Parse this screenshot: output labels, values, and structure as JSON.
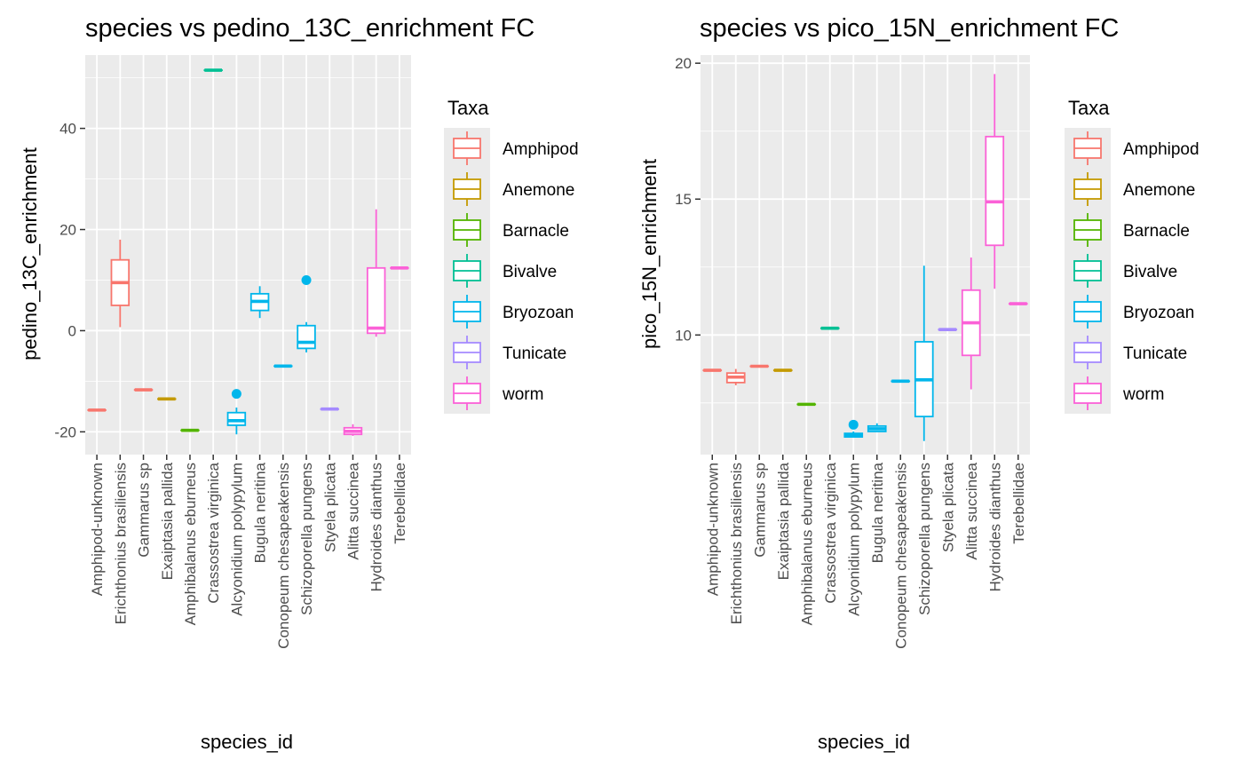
{
  "chart_data": [
    {
      "type": "boxplot",
      "title": "species vs pedino_13C_enrichment FC",
      "xlabel": "species_id",
      "ylabel": "pedino_13C_enrichment",
      "ylim": [
        -24.5,
        54.5
      ],
      "yticks": [
        -20,
        0,
        20,
        40
      ],
      "grid": true,
      "legend_position": "right",
      "categories": [
        "Amphipod-unknown",
        "Erichthonius brasiliensis",
        "Gammarus sp",
        "Exaiptasia pallida",
        "Amphibalanus eburneus",
        "Crassostrea virginica",
        "Alcyonidium polypylum",
        "Bugula neritina",
        "Conopeum chesapeakensis",
        "Schizoporella pungens",
        "Styela plicata",
        "Alitta succinea",
        "Hydroides dianthus",
        "Terebellidae"
      ],
      "boxes": [
        {
          "species": "Amphipod-unknown",
          "taxa": "Amphipod",
          "min": -15.7,
          "q1": -15.7,
          "median": -15.7,
          "q3": -15.7,
          "max": -15.7,
          "outliers": []
        },
        {
          "species": "Erichthonius brasiliensis",
          "taxa": "Amphipod",
          "min": 0.7,
          "q1": 5,
          "median": 9.5,
          "q3": 14,
          "max": 18,
          "outliers": []
        },
        {
          "species": "Gammarus sp",
          "taxa": "Amphipod",
          "min": -11.7,
          "q1": -11.7,
          "median": -11.7,
          "q3": -11.7,
          "max": -11.7,
          "outliers": []
        },
        {
          "species": "Exaiptasia pallida",
          "taxa": "Anemone",
          "min": -13.5,
          "q1": -13.5,
          "median": -13.5,
          "q3": -13.5,
          "max": -13.5,
          "outliers": []
        },
        {
          "species": "Amphibalanus eburneus",
          "taxa": "Barnacle",
          "min": -19.7,
          "q1": -19.7,
          "median": -19.7,
          "q3": -19.7,
          "max": -19.7,
          "outliers": []
        },
        {
          "species": "Crassostrea virginica",
          "taxa": "Bivalve",
          "min": 51.5,
          "q1": 51.5,
          "median": 51.5,
          "q3": 51.5,
          "max": 51.5,
          "outliers": []
        },
        {
          "species": "Alcyonidium polypylum",
          "taxa": "Bryozoan",
          "min": -20.5,
          "q1": -18.7,
          "median": -17.8,
          "q3": -16.2,
          "max": -15.2,
          "outliers": [
            -12.5
          ]
        },
        {
          "species": "Bugula neritina",
          "taxa": "Bryozoan",
          "min": 2.5,
          "q1": 4,
          "median": 5.8,
          "q3": 7.3,
          "max": 8.8,
          "outliers": []
        },
        {
          "species": "Conopeum chesapeakensis",
          "taxa": "Bryozoan",
          "min": -7,
          "q1": -7,
          "median": -7,
          "q3": -7,
          "max": -7,
          "outliers": []
        },
        {
          "species": "Schizoporella pungens",
          "taxa": "Bryozoan",
          "min": -4.3,
          "q1": -3.5,
          "median": -2.3,
          "q3": 1,
          "max": 1.7,
          "outliers": [
            10
          ]
        },
        {
          "species": "Styela plicata",
          "taxa": "Tunicate",
          "min": -15.5,
          "q1": -15.5,
          "median": -15.5,
          "q3": -15.5,
          "max": -15.5,
          "outliers": []
        },
        {
          "species": "Alitta succinea",
          "taxa": "worm",
          "min": -20.8,
          "q1": -20.5,
          "median": -19.9,
          "q3": -19.2,
          "max": -18.5,
          "outliers": []
        },
        {
          "species": "Hydroides dianthus",
          "taxa": "worm",
          "min": -1.2,
          "q1": -0.5,
          "median": 0.5,
          "q3": 12.4,
          "max": 24,
          "outliers": []
        },
        {
          "species": "Terebellidae",
          "taxa": "worm",
          "min": 12.4,
          "q1": 12.4,
          "median": 12.4,
          "q3": 12.4,
          "max": 12.4,
          "outliers": []
        }
      ]
    },
    {
      "type": "boxplot",
      "title": "species vs pico_15N_enrichment FC",
      "xlabel": "species_id",
      "ylabel": "pico_15N_enrichment",
      "ylim": [
        5.6,
        20.3
      ],
      "yticks": [
        10,
        15,
        20
      ],
      "grid": true,
      "legend_position": "right",
      "categories": [
        "Amphipod-unknown",
        "Erichthonius brasiliensis",
        "Gammarus sp",
        "Exaiptasia pallida",
        "Amphibalanus eburneus",
        "Crassostrea virginica",
        "Alcyonidium polypylum",
        "Bugula neritina",
        "Conopeum chesapeakensis",
        "Schizoporella pungens",
        "Styela plicata",
        "Alitta succinea",
        "Hydroides dianthus",
        "Terebellidae"
      ],
      "boxes": [
        {
          "species": "Amphipod-unknown",
          "taxa": "Amphipod",
          "min": 8.7,
          "q1": 8.7,
          "median": 8.7,
          "q3": 8.7,
          "max": 8.7,
          "outliers": []
        },
        {
          "species": "Erichthonius brasiliensis",
          "taxa": "Amphipod",
          "min": 8.15,
          "q1": 8.25,
          "median": 8.45,
          "q3": 8.6,
          "max": 8.75,
          "outliers": []
        },
        {
          "species": "Gammarus sp",
          "taxa": "Amphipod",
          "min": 8.85,
          "q1": 8.85,
          "median": 8.85,
          "q3": 8.85,
          "max": 8.85,
          "outliers": []
        },
        {
          "species": "Exaiptasia pallida",
          "taxa": "Anemone",
          "min": 8.7,
          "q1": 8.7,
          "median": 8.7,
          "q3": 8.7,
          "max": 8.7,
          "outliers": []
        },
        {
          "species": "Amphibalanus eburneus",
          "taxa": "Barnacle",
          "min": 7.45,
          "q1": 7.45,
          "median": 7.45,
          "q3": 7.45,
          "max": 7.45,
          "outliers": []
        },
        {
          "species": "Crassostrea virginica",
          "taxa": "Bivalve",
          "min": 10.25,
          "q1": 10.25,
          "median": 10.25,
          "q3": 10.25,
          "max": 10.25,
          "outliers": []
        },
        {
          "species": "Alcyonidium polypylum",
          "taxa": "Bryozoan",
          "min": 6.25,
          "q1": 6.25,
          "median": 6.3,
          "q3": 6.38,
          "max": 6.45,
          "outliers": [
            6.7
          ]
        },
        {
          "species": "Bugula neritina",
          "taxa": "Bryozoan",
          "min": 6.45,
          "q1": 6.45,
          "median": 6.55,
          "q3": 6.65,
          "max": 6.75,
          "outliers": []
        },
        {
          "species": "Conopeum chesapeakensis",
          "taxa": "Bryozoan",
          "min": 8.3,
          "q1": 8.3,
          "median": 8.3,
          "q3": 8.3,
          "max": 8.3,
          "outliers": []
        },
        {
          "species": "Schizoporella pungens",
          "taxa": "Bryozoan",
          "min": 6.1,
          "q1": 7.0,
          "median": 8.35,
          "q3": 9.75,
          "max": 12.55,
          "outliers": []
        },
        {
          "species": "Styela plicata",
          "taxa": "Tunicate",
          "min": 10.2,
          "q1": 10.2,
          "median": 10.2,
          "q3": 10.2,
          "max": 10.2,
          "outliers": []
        },
        {
          "species": "Alitta succinea",
          "taxa": "worm",
          "min": 8.0,
          "q1": 9.25,
          "median": 10.45,
          "q3": 11.65,
          "max": 12.85,
          "outliers": []
        },
        {
          "species": "Hydroides dianthus",
          "taxa": "worm",
          "min": 11.7,
          "q1": 13.3,
          "median": 14.9,
          "q3": 17.3,
          "max": 19.6,
          "outliers": []
        },
        {
          "species": "Terebellidae",
          "taxa": "worm",
          "min": 11.15,
          "q1": 11.15,
          "median": 11.15,
          "q3": 11.15,
          "max": 11.15,
          "outliers": []
        }
      ]
    }
  ],
  "legend": {
    "title": "Taxa",
    "items": [
      {
        "label": "Amphipod",
        "color": "#F8766D"
      },
      {
        "label": "Anemone",
        "color": "#C49A00"
      },
      {
        "label": "Barnacle",
        "color": "#53B400"
      },
      {
        "label": "Bivalve",
        "color": "#00C094"
      },
      {
        "label": "Bryozoan",
        "color": "#00B6EB"
      },
      {
        "label": "Tunicate",
        "color": "#A58AFF"
      },
      {
        "label": "worm",
        "color": "#FB61D7"
      }
    ]
  },
  "colors": {
    "panel_background": "#EBEBEB",
    "grid_major": "#FFFFFF",
    "tick_text": "#4D4D4D"
  }
}
